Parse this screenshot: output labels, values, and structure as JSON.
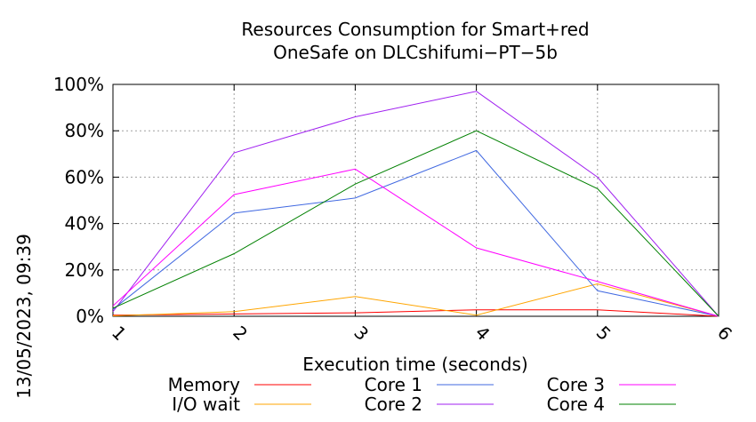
{
  "chart_data": {
    "type": "line",
    "title_line1": "Resources Consumption for Smart+red",
    "title_line2": "OneSafe on DLCshifumi−PT−5b",
    "xlabel": "Execution time (seconds)",
    "side_label": "13/05/2023, 09:39",
    "x": [
      1,
      2,
      3,
      4,
      5,
      6
    ],
    "xlim": [
      1,
      6
    ],
    "ylim": [
      0,
      100
    ],
    "y_ticks": [
      "0%",
      "20%",
      "40%",
      "60%",
      "80%",
      "100%"
    ],
    "y_tick_values": [
      0,
      20,
      40,
      60,
      80,
      100
    ],
    "x_ticks": [
      "1",
      "2",
      "3",
      "4",
      "5",
      "6"
    ],
    "grid": true,
    "legend_position": "bottom",
    "series": [
      {
        "name": "Memory",
        "color": "#ff0000",
        "values": [
          0.5,
          1,
          1.5,
          2.8,
          2.8,
          0
        ]
      },
      {
        "name": "I/O wait",
        "color": "#ffa500",
        "values": [
          0.2,
          2,
          8.5,
          0.5,
          14,
          0
        ]
      },
      {
        "name": "Core 1",
        "color": "#4169e1",
        "values": [
          3,
          44.5,
          51,
          71.5,
          11,
          0
        ]
      },
      {
        "name": "Core 2",
        "color": "#a020f0",
        "values": [
          2,
          70.5,
          86,
          97,
          60,
          0
        ]
      },
      {
        "name": "Core 3",
        "color": "#ff00ff",
        "values": [
          4.5,
          52.5,
          63.5,
          29.5,
          15,
          0
        ]
      },
      {
        "name": "Core 4",
        "color": "#008000",
        "values": [
          3.5,
          27,
          57,
          80,
          55,
          0
        ]
      }
    ]
  }
}
